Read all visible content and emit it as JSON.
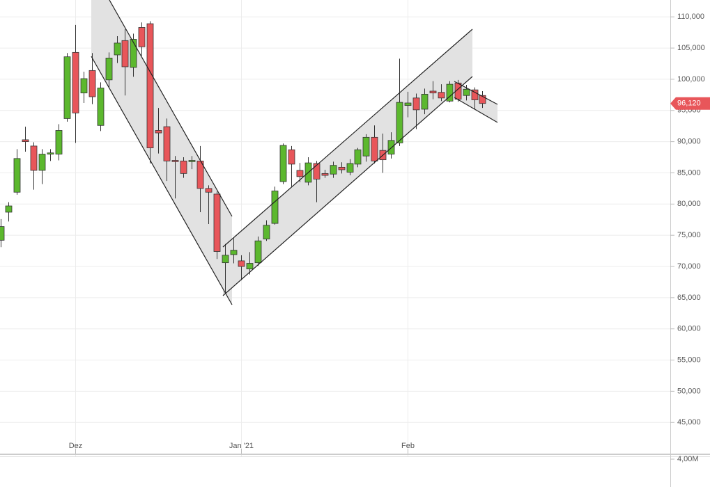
{
  "chart_data": {
    "type": "candlestick",
    "categories": [
      null,
      null,
      null,
      null,
      null,
      null,
      null,
      null,
      null,
      "Dez",
      null,
      null,
      null,
      null,
      null,
      null,
      null,
      null,
      null,
      null,
      null,
      null,
      null,
      null,
      null,
      null,
      null,
      null,
      null,
      "Jan '21",
      null,
      null,
      null,
      null,
      null,
      null,
      null,
      null,
      null,
      null,
      null,
      null,
      null,
      null,
      null,
      null,
      null,
      null,
      null,
      "Feb",
      null,
      null,
      null,
      null,
      null,
      null,
      null,
      null,
      null
    ],
    "open": [
      74200,
      78700,
      81900,
      90300,
      89300,
      85400,
      88000,
      88000,
      93700,
      104300,
      97800,
      101400,
      92600,
      99900,
      103900,
      106200,
      101900,
      108300,
      108900,
      91800,
      92400,
      87000,
      86900,
      86800,
      86900,
      82500,
      81600,
      70600,
      71900,
      70900,
      69600,
      70600,
      74400,
      76900,
      83600,
      88700,
      85400,
      83500,
      86500,
      84900,
      84800,
      85900,
      85100,
      86400,
      87700,
      90700,
      88600,
      88000,
      89800,
      95800,
      97000,
      95200,
      98100,
      97900,
      96500,
      99400,
      97400,
      98300,
      97400
    ],
    "high": [
      77600,
      80300,
      88800,
      92400,
      89900,
      88800,
      88800,
      92800,
      104200,
      108700,
      101200,
      104200,
      99500,
      104300,
      106900,
      108000,
      107300,
      109100,
      109300,
      95400,
      93700,
      87700,
      87500,
      87700,
      89300,
      83000,
      82000,
      73600,
      74500,
      71800,
      72300,
      74800,
      77400,
      82800,
      89700,
      89300,
      86600,
      87500,
      86900,
      85500,
      86800,
      86700,
      87200,
      89000,
      91200,
      92600,
      91300,
      91500,
      103300,
      98000,
      97700,
      98500,
      99700,
      99200,
      99700,
      99900,
      99100,
      98700,
      98100
    ],
    "low": [
      73100,
      77200,
      81500,
      88400,
      82300,
      83200,
      86900,
      87000,
      93200,
      89800,
      96200,
      96000,
      91700,
      98700,
      102600,
      97400,
      100400,
      103800,
      86500,
      88100,
      83700,
      80900,
      84200,
      85600,
      78700,
      76800,
      71200,
      65800,
      70500,
      67800,
      68700,
      70100,
      74100,
      76700,
      83200,
      82800,
      83500,
      83000,
      80300,
      84200,
      84200,
      84900,
      84600,
      85900,
      86800,
      86500,
      85000,
      87300,
      89300,
      93900,
      92000,
      94400,
      96800,
      96500,
      96300,
      96400,
      96600,
      95200,
      95400
    ],
    "close": [
      76400,
      79700,
      87300,
      90000,
      85400,
      88000,
      88200,
      91800,
      103600,
      94600,
      100100,
      97200,
      98600,
      103400,
      105800,
      102000,
      106400,
      105200,
      89000,
      91400,
      86900,
      86800,
      84900,
      87000,
      82500,
      81900,
      72400,
      71800,
      72600,
      70000,
      70500,
      74100,
      76600,
      82100,
      89400,
      86400,
      84400,
      86600,
      84000,
      84600,
      86200,
      85500,
      86500,
      88700,
      90700,
      86900,
      87100,
      90200,
      96300,
      96200,
      95100,
      97600,
      97800,
      97000,
      99200,
      96800,
      98400,
      96700,
      96120
    ],
    "up_color": "#5cb82e",
    "down_color": "#e8565a",
    "ylim": [
      39900,
      112700
    ],
    "yticks": [
      {
        "value": 45000,
        "label": "45,000"
      },
      {
        "value": 50000,
        "label": "50,000"
      },
      {
        "value": 55000,
        "label": "55,000"
      },
      {
        "value": 60000,
        "label": "60,000"
      },
      {
        "value": 65000,
        "label": "65,000"
      },
      {
        "value": 70000,
        "label": "70,000"
      },
      {
        "value": 75000,
        "label": "75,000"
      },
      {
        "value": 80000,
        "label": "80,000"
      },
      {
        "value": 85000,
        "label": "85,000"
      },
      {
        "value": 90000,
        "label": "90,000"
      },
      {
        "value": 95000,
        "label": "95,000"
      },
      {
        "value": 100000,
        "label": "100,000"
      },
      {
        "value": 105000,
        "label": "105,000"
      },
      {
        "value": 110000,
        "label": "110,000"
      }
    ],
    "grid": true,
    "last_price": {
      "value": 96120,
      "label": "96,120"
    },
    "volume_yticks": [
      {
        "value": 4000000,
        "label": "4,00M"
      }
    ]
  }
}
